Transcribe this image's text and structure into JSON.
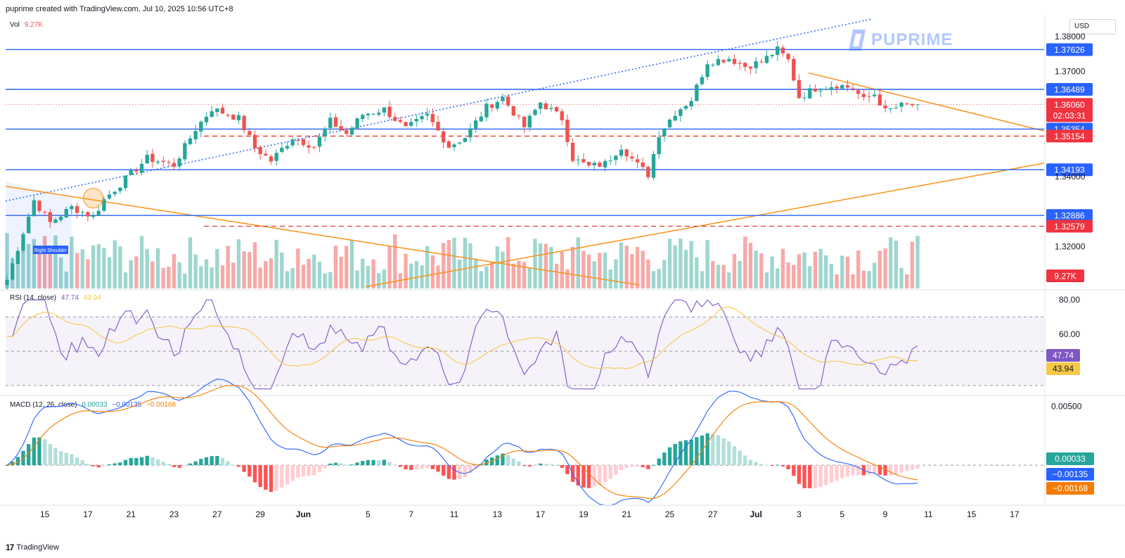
{
  "header": {
    "credit": "puprime created with TradingView.com, Jul 10, 2025 10:56 UTC+8"
  },
  "footer": {
    "logo_text": "17",
    "brand": "TradingView"
  },
  "watermark": {
    "text": "PUPRIME"
  },
  "currency": "USD",
  "colors": {
    "up": "#26a69a",
    "down": "#ef5350",
    "level": "#2962ff",
    "trend": "#f7931a",
    "rsi": "#7e57c2",
    "rsi_ma": "#f7c948",
    "macd": "#2962ff",
    "signal": "#f57c00",
    "vol_up": "#9ed6cf",
    "vol_down": "#f7a9a7"
  },
  "panes": {
    "volume": {
      "label": "Vol",
      "value": "9.27K"
    },
    "rsi": {
      "label": "RSI (14, close)",
      "value1": "47.74",
      "value2": "43.94"
    },
    "macd": {
      "label": "MACD (12, 26, close)",
      "value1": "0.00033",
      "value2": "−0.00135",
      "value3": "−0.00168"
    }
  },
  "annotation": {
    "pattern_label": "Right Shoulder"
  },
  "chart_data": [
    {
      "type": "candlestick",
      "ylim": [
        1.308,
        1.386
      ],
      "price_ticks": [
        "1.38000",
        "1.37000",
        "1.34000",
        "1.32000"
      ],
      "price_tick_values": [
        1.38,
        1.37,
        1.34,
        1.32
      ],
      "x_ticks": [
        "15",
        "17",
        "21",
        "23",
        "27",
        "29",
        "Jun",
        "5",
        "7",
        "11",
        "13",
        "17",
        "19",
        "21",
        "25",
        "27",
        "Jul",
        "3",
        "5",
        "9",
        "11",
        "15",
        "17"
      ],
      "x_tick_bars": [
        7,
        15,
        23,
        31,
        39,
        47,
        55,
        67,
        75,
        83,
        91,
        99,
        107,
        115,
        123,
        131,
        139,
        147,
        155,
        163,
        171,
        179,
        187
      ],
      "levels": [
        {
          "value": 1.37626,
          "label": "1.37626",
          "style": "solid"
        },
        {
          "value": 1.36489,
          "label": "1.36489",
          "style": "solid"
        },
        {
          "value": 1.35354,
          "label": "1.35354",
          "style": "solid"
        },
        {
          "value": 1.35154,
          "label": "1.35154",
          "style": "dashed"
        },
        {
          "value": 1.34193,
          "label": "1.34193",
          "style": "solid"
        },
        {
          "value": 1.32886,
          "label": "1.32886",
          "style": "solid"
        },
        {
          "value": 1.32579,
          "label": "1.32579",
          "style": "dashed"
        }
      ],
      "last_price": {
        "value": 1.3606,
        "label": "1.36060",
        "countdown": "02:03:31"
      },
      "volume_label": "9.27K",
      "waypoints": [
        [
          0,
          1.3105
        ],
        [
          5,
          1.3332
        ],
        [
          8,
          1.3268
        ],
        [
          12,
          1.3312
        ],
        [
          16,
          1.3285
        ],
        [
          18,
          1.3334
        ],
        [
          26,
          1.3452
        ],
        [
          31,
          1.3433
        ],
        [
          35,
          1.3536
        ],
        [
          38,
          1.3594
        ],
        [
          43,
          1.3566
        ],
        [
          46,
          1.3482
        ],
        [
          49,
          1.3445
        ],
        [
          53,
          1.3512
        ],
        [
          57,
          1.3486
        ],
        [
          60,
          1.3558
        ],
        [
          63,
          1.3522
        ],
        [
          66,
          1.3577
        ],
        [
          70,
          1.3592
        ],
        [
          74,
          1.3536
        ],
        [
          78,
          1.3574
        ],
        [
          82,
          1.3486
        ],
        [
          85,
          1.3512
        ],
        [
          89,
          1.3598
        ],
        [
          92,
          1.3625
        ],
        [
          96,
          1.3542
        ],
        [
          99,
          1.3612
        ],
        [
          103,
          1.3566
        ],
        [
          105,
          1.3452
        ],
        [
          108,
          1.3428
        ],
        [
          111,
          1.3437
        ],
        [
          114,
          1.3486
        ],
        [
          117,
          1.3433
        ],
        [
          119,
          1.3406
        ],
        [
          121,
          1.3522
        ],
        [
          124,
          1.3583
        ],
        [
          127,
          1.362
        ],
        [
          130,
          1.3728
        ],
        [
          134,
          1.3738
        ],
        [
          137,
          1.3715
        ],
        [
          140,
          1.3728
        ],
        [
          143,
          1.3762
        ],
        [
          145,
          1.3732
        ],
        [
          147,
          1.3627
        ],
        [
          150,
          1.3652
        ],
        [
          154,
          1.3662
        ],
        [
          157,
          1.3652
        ],
        [
          159,
          1.3618
        ],
        [
          161,
          1.3636
        ],
        [
          163,
          1.3586
        ],
        [
          166,
          1.3602
        ],
        [
          169,
          1.3606
        ]
      ],
      "bar_count": 170
    },
    {
      "type": "line",
      "name_label": "RSI (14, close)",
      "ylim": [
        25,
        85
      ],
      "ticks": [
        "80.00",
        "60.00"
      ],
      "tick_values": [
        80,
        60
      ],
      "bands": [
        70,
        50,
        30
      ],
      "last_values": [
        "47.74",
        "43.94"
      ]
    },
    {
      "type": "histogram",
      "name_label": "MACD (12, 26, close)",
      "ylim": [
        -0.0034,
        0.0058
      ],
      "ticks": [
        "0.00500"
      ],
      "tick_values": [
        0.005
      ],
      "last_values": [
        "0.00033",
        "−0.00135",
        "−0.00168"
      ]
    }
  ]
}
